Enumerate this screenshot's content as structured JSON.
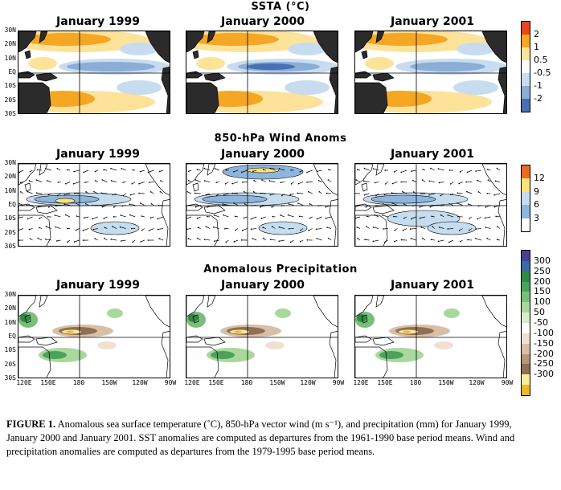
{
  "sections": [
    {
      "id": "ssta",
      "title": "SSTA (°C)",
      "panels": [
        "January 1999",
        "January 2000",
        "January 2001"
      ],
      "colorbar": {
        "labels": [
          "2",
          "1",
          "0.5",
          "-0.5",
          "-1",
          "-2"
        ],
        "colors": [
          "#e8461c",
          "#f5a623",
          "#fde29a",
          "#ffffff",
          "#c8dcef",
          "#8aaed6",
          "#4a6fb5"
        ]
      }
    },
    {
      "id": "wind",
      "title": "850-hPa Wind Anoms",
      "panels": [
        "January 1999",
        "January 2000",
        "January 2001"
      ],
      "colorbar": {
        "labels": [
          "12",
          "9",
          "6",
          "3"
        ],
        "colors": [
          "#f06a1e",
          "#fde37a",
          "#c6dcef",
          "#8eb5dc",
          "#ffffff"
        ]
      }
    },
    {
      "id": "precip",
      "title": "Anomalous Precipitation",
      "panels": [
        "January 1999",
        "January 2000",
        "January 2001"
      ],
      "colorbar": {
        "labels": [
          "300",
          "250",
          "200",
          "150",
          "100",
          "50",
          "-50",
          "-100",
          "-150",
          "-200",
          "-250",
          "-300"
        ],
        "colors": [
          "#4d3f8f",
          "#3b6aa8",
          "#2f8a45",
          "#4ca25a",
          "#79bf7a",
          "#a9d89d",
          "#d6edcc",
          "#ffffff",
          "#efe1d2",
          "#d9bfa6",
          "#b99878",
          "#8f6f55",
          "#f7ec9e",
          "#f2b62c"
        ]
      }
    }
  ],
  "lat_labels": [
    "30N",
    "20N",
    "10N",
    "EQ",
    "10S",
    "20S",
    "30S"
  ],
  "lon_labels": [
    "120E",
    "150E",
    "180",
    "150W",
    "120W",
    "90W"
  ],
  "caption": {
    "lead": "FIGURE 1.",
    "text": "Anomalous sea surface temperature (˚C), 850-hPa vector wind (m s⁻¹), and precipitation (mm) for January 1999, January 2000 and January 2001.  SST anomalies are computed as departures from the 1961-1990 base period means. Wind and precipitation anomalies are computed as departures from the 1979-1995 base period means."
  },
  "chart_data": [
    {
      "type": "heatmap",
      "title": "SSTA (°C)",
      "panels": [
        "January 1999",
        "January 2000",
        "January 2001"
      ],
      "levels": [
        -2,
        -1,
        -0.5,
        0.5,
        1,
        2
      ],
      "y_ticks": [
        "30N",
        "20N",
        "10N",
        "EQ",
        "10S",
        "20S",
        "30S"
      ],
      "x_range": [
        "120E",
        "90W"
      ]
    },
    {
      "type": "heatmap",
      "title": "850-hPa Wind Anoms",
      "panels": [
        "January 1999",
        "January 2000",
        "January 2001"
      ],
      "levels": [
        3,
        6,
        9,
        12
      ],
      "y_ticks": [
        "30N",
        "20N",
        "10N",
        "EQ",
        "10S",
        "20S",
        "30S"
      ],
      "x_range": [
        "120E",
        "90W"
      ]
    },
    {
      "type": "heatmap",
      "title": "Anomalous Precipitation",
      "panels": [
        "January 1999",
        "January 2000",
        "January 2001"
      ],
      "levels": [
        -300,
        -250,
        -200,
        -150,
        -100,
        -50,
        50,
        100,
        150,
        200,
        250,
        300
      ],
      "y_ticks": [
        "30N",
        "20N",
        "10N",
        "EQ",
        "10S",
        "20S",
        "30S"
      ],
      "x_ticks": [
        "120E",
        "150E",
        "180",
        "150W",
        "120W",
        "90W"
      ]
    }
  ]
}
